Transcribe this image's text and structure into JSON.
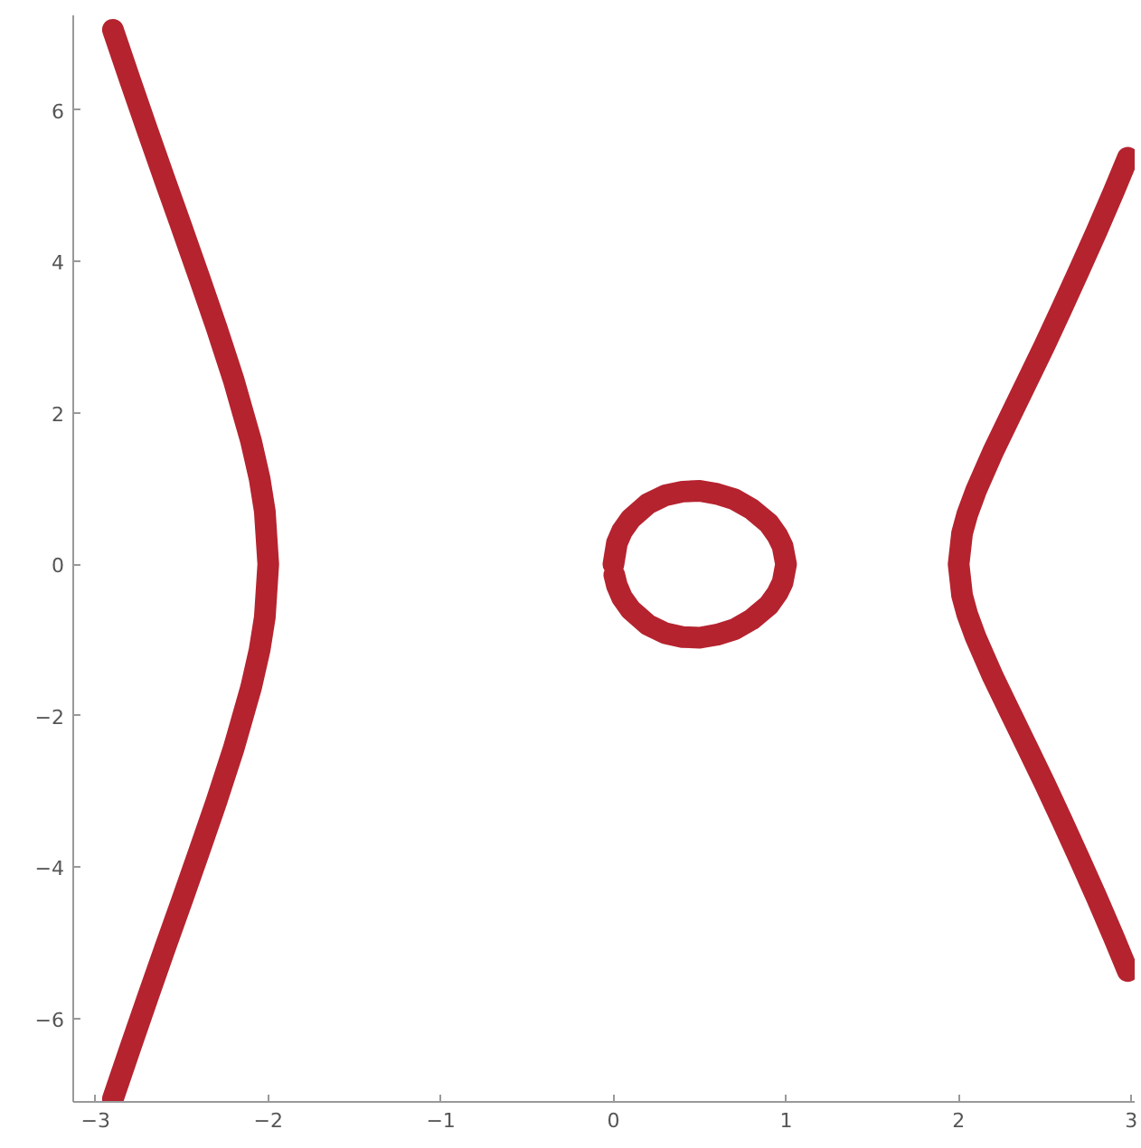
{
  "chart_data": {
    "type": "line",
    "xlim": [
      -3.13,
      3.02
    ],
    "ylim": [
      -7.1,
      7.25
    ],
    "xticks": [
      -3,
      -2,
      -1,
      0,
      1,
      2,
      3
    ],
    "yticks": [
      -6,
      -4,
      -2,
      0,
      2,
      4,
      6
    ],
    "grid": false,
    "line_style": "solid",
    "series": [
      {
        "color": "#b5232f",
        "x": [
          -2.9,
          -2.8,
          -2.7,
          -2.6,
          -2.5,
          -2.4,
          -2.3,
          -2.2,
          -2.1,
          -2.05,
          -2.02,
          -2.0,
          -2.02,
          -2.05,
          -2.1,
          -2.2,
          -2.3,
          -2.4,
          -2.5,
          -2.6,
          -2.7,
          -2.8,
          -2.9
        ],
        "values": [
          7.06,
          6.39,
          5.73,
          5.08,
          4.44,
          3.79,
          3.13,
          2.43,
          1.63,
          1.13,
          0.7,
          0,
          -0.7,
          -1.13,
          -1.63,
          -2.43,
          -3.13,
          -3.79,
          -4.44,
          -5.08,
          -5.73,
          -6.39,
          -7.06
        ]
      },
      {
        "color": "#b5232f",
        "x": [
          0,
          0.02,
          0.05,
          0.1,
          0.2,
          0.3,
          0.4,
          0.5,
          0.6,
          0.7,
          0.8,
          0.9,
          0.95,
          0.98,
          1.0,
          0.98,
          0.95,
          0.9,
          0.8,
          0.7,
          0.6,
          0.5,
          0.4,
          0.3,
          0.2,
          0.1,
          0.05,
          0.02,
          0.005
        ],
        "values": [
          0,
          0.28,
          0.44,
          0.6,
          0.8,
          0.91,
          0.96,
          0.97,
          0.93,
          0.86,
          0.73,
          0.54,
          0.38,
          0.24,
          0,
          -0.24,
          -0.38,
          -0.54,
          -0.73,
          -0.86,
          -0.93,
          -0.97,
          -0.96,
          -0.91,
          -0.8,
          -0.6,
          -0.44,
          -0.28,
          -0.14
        ]
      },
      {
        "color": "#b5232f",
        "x": [
          2.98,
          2.9,
          2.8,
          2.7,
          2.6,
          2.5,
          2.4,
          2.3,
          2.2,
          2.1,
          2.05,
          2.02,
          2.0,
          2.02,
          2.05,
          2.1,
          2.2,
          2.3,
          2.4,
          2.5,
          2.6,
          2.7,
          2.8,
          2.9,
          2.98
        ],
        "values": [
          5.37,
          4.93,
          4.4,
          3.89,
          3.39,
          2.9,
          2.43,
          1.96,
          1.49,
          0.97,
          0.66,
          0.41,
          0,
          -0.41,
          -0.66,
          -0.97,
          -1.49,
          -1.96,
          -2.43,
          -2.9,
          -3.39,
          -3.89,
          -4.4,
          -4.93,
          -5.37
        ]
      }
    ]
  }
}
